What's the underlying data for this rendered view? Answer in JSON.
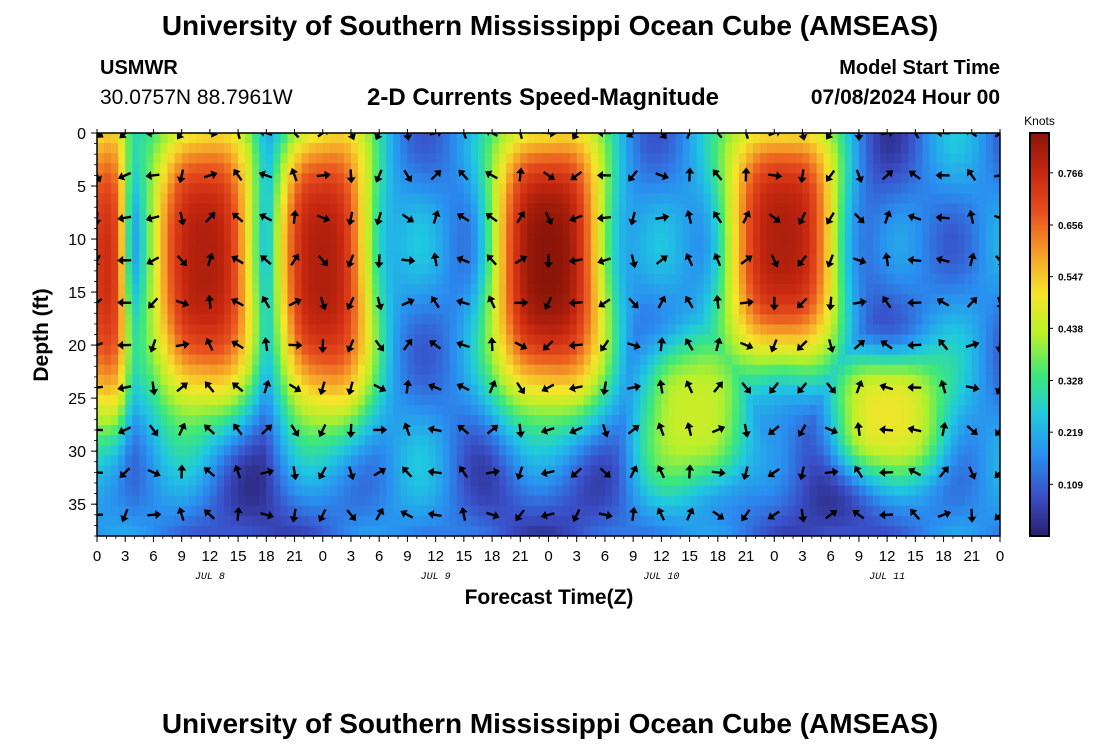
{
  "header": {
    "title": "University of Southern Mississippi Ocean Cube (AMSEAS)",
    "station": "USMWR",
    "coordinates": "30.0757N  88.7961W",
    "subtitle": "2-D Currents Speed-Magnitude",
    "model_start_label": "Model Start Time",
    "model_start_value": "07/08/2024 Hour 00"
  },
  "footer": {
    "title": "University of Southern Mississippi Ocean Cube (AMSEAS)"
  },
  "colors": {
    "colormap": [
      "#2a1f6e",
      "#3a4fc8",
      "#2a8ff0",
      "#1fc8e0",
      "#3de87a",
      "#b8f02a",
      "#f5e52a",
      "#f5a028",
      "#e8501e",
      "#c82810",
      "#8a1508"
    ]
  },
  "chart_data": {
    "type": "heatmap",
    "title": "2-D Currents Speed-Magnitude",
    "xlabel": "Forecast Time(Z)",
    "ylabel": "Depth (ft)",
    "x_range_hours": [
      0,
      96
    ],
    "y_range_ft": [
      0,
      38
    ],
    "x_tick_labels": [
      "0",
      "3",
      "6",
      "9",
      "12",
      "15",
      "18",
      "21",
      "0",
      "3",
      "6",
      "9",
      "12",
      "15",
      "18",
      "21",
      "0",
      "3",
      "6",
      "9",
      "12",
      "15",
      "18",
      "21",
      "0",
      "3",
      "6",
      "9",
      "12",
      "15",
      "18",
      "21",
      "0"
    ],
    "day_labels": [
      {
        "label": "JUL 8",
        "hour": 12
      },
      {
        "label": "JUL 9",
        "hour": 36
      },
      {
        "label": "JUL 10",
        "hour": 60
      },
      {
        "label": "JUL 11",
        "hour": 84
      }
    ],
    "y_ticks": [
      0,
      5,
      10,
      15,
      20,
      25,
      30,
      35
    ],
    "colorbar": {
      "unit": "Knots",
      "min": 0.0,
      "max": 0.85,
      "ticks": [
        "0.766",
        "0.656",
        "0.547",
        "0.438",
        "0.328",
        "0.219",
        "0.109"
      ],
      "tick_values": [
        0.766,
        0.656,
        0.547,
        0.438,
        0.328,
        0.219,
        0.109
      ]
    },
    "arrow_depths_ft": [
      0,
      4,
      8,
      12,
      16,
      20,
      24,
      28,
      32,
      36
    ],
    "arrow_hours": [
      0,
      3,
      6,
      9,
      12,
      15,
      18,
      21,
      24,
      27,
      30,
      33,
      36,
      39,
      42,
      45,
      48,
      51,
      54,
      57,
      60,
      63,
      66,
      69,
      72,
      75,
      78,
      81,
      84,
      87,
      90,
      93,
      96
    ],
    "high_speed_regions": [
      {
        "hours": [
          0,
          2
        ],
        "depths_ft": [
          0,
          25
        ],
        "speed": 0.75
      },
      {
        "hours": [
          7,
          16
        ],
        "depths_ft": [
          0,
          24
        ],
        "speed": 0.8
      },
      {
        "hours": [
          20,
          28
        ],
        "depths_ft": [
          0,
          25
        ],
        "speed": 0.8
      },
      {
        "hours": [
          43,
          53
        ],
        "depths_ft": [
          0,
          24
        ],
        "speed": 0.85
      },
      {
        "hours": [
          59,
          68
        ],
        "depths_ft": [
          22,
          31
        ],
        "speed": 0.45
      },
      {
        "hours": [
          68,
          78
        ],
        "depths_ft": [
          0,
          20
        ],
        "speed": 0.8
      },
      {
        "hours": [
          79,
          89
        ],
        "depths_ft": [
          23,
          30
        ],
        "speed": 0.5
      }
    ]
  }
}
